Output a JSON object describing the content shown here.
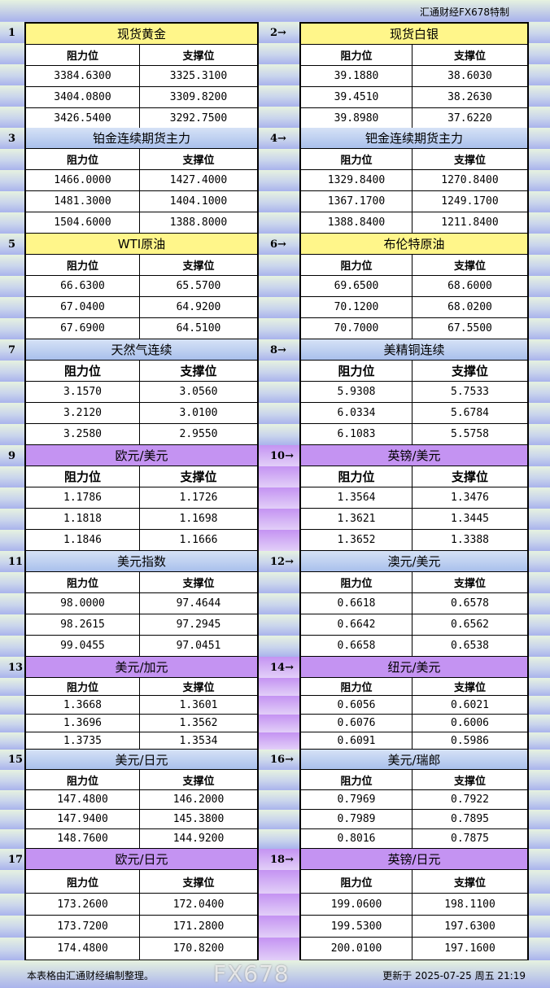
{
  "header": {
    "credit": "汇通财经FX678特制"
  },
  "colors": {
    "yellow": "#fff68a",
    "blue": "#b8cdf0",
    "purple": "#c493f2"
  },
  "column_headers": {
    "resistance": "阻力位",
    "support": "支撑位"
  },
  "sections": [
    {
      "num": "1",
      "title": "现货黄金",
      "style": "yellow",
      "res": [
        "3384.6300",
        "3404.0800",
        "3426.5400"
      ],
      "sup": [
        "3325.3100",
        "3309.8200",
        "3292.7500"
      ]
    },
    {
      "num": "2→",
      "title": "现货白银",
      "style": "yellow",
      "res": [
        "39.1880",
        "39.4510",
        "39.8980"
      ],
      "sup": [
        "38.6030",
        "38.2630",
        "37.6220"
      ]
    },
    {
      "num": "3",
      "title": "铂金连续期货主力",
      "style": "blue",
      "res": [
        "1466.0000",
        "1481.3000",
        "1504.6000"
      ],
      "sup": [
        "1427.4000",
        "1404.1000",
        "1388.8000"
      ]
    },
    {
      "num": "4→",
      "title": "钯金连续期货主力",
      "style": "blue",
      "res": [
        "1329.8400",
        "1367.1700",
        "1388.8400"
      ],
      "sup": [
        "1270.8400",
        "1249.1700",
        "1211.8400"
      ]
    },
    {
      "num": "5",
      "title": "WTI原油",
      "style": "yellow",
      "res": [
        "66.6300",
        "67.0400",
        "67.6900"
      ],
      "sup": [
        "65.5700",
        "64.9200",
        "64.5100"
      ]
    },
    {
      "num": "6→",
      "title": "布伦特原油",
      "style": "yellow",
      "res": [
        "69.6500",
        "70.1200",
        "70.7000"
      ],
      "sup": [
        "68.6000",
        "68.0200",
        "67.5500"
      ]
    },
    {
      "num": "7",
      "title": "天然气连续",
      "style": "blue",
      "res": [
        "3.1570",
        "3.2120",
        "3.2580"
      ],
      "sup": [
        "3.0560",
        "3.0100",
        "2.9550"
      ]
    },
    {
      "num": "8→",
      "title": "美精铜连续",
      "style": "blue",
      "res": [
        "5.9308",
        "6.0334",
        "6.1083"
      ],
      "sup": [
        "5.7533",
        "5.6784",
        "5.5758"
      ]
    },
    {
      "num": "9",
      "title": "欧元/美元",
      "style": "purple",
      "res": [
        "1.1786",
        "1.1818",
        "1.1846"
      ],
      "sup": [
        "1.1726",
        "1.1698",
        "1.1666"
      ]
    },
    {
      "num": "10→",
      "title": "英镑/美元",
      "style": "purple",
      "res": [
        "1.3564",
        "1.3621",
        "1.3652"
      ],
      "sup": [
        "1.3476",
        "1.3445",
        "1.3388"
      ]
    },
    {
      "num": "11",
      "title": "美元指数",
      "style": "blue",
      "res": [
        "98.0000",
        "98.2615",
        "99.0455"
      ],
      "sup": [
        "97.4644",
        "97.2945",
        "97.0451"
      ]
    },
    {
      "num": "12→",
      "title": "澳元/美元",
      "style": "blue",
      "res": [
        "0.6618",
        "0.6642",
        "0.6658"
      ],
      "sup": [
        "0.6578",
        "0.6562",
        "0.6538"
      ]
    },
    {
      "num": "13",
      "title": "美元/加元",
      "style": "purple",
      "res": [
        "1.3668",
        "1.3696",
        "1.3735"
      ],
      "sup": [
        "1.3601",
        "1.3562",
        "1.3534"
      ]
    },
    {
      "num": "14→",
      "title": "纽元/美元",
      "style": "purple",
      "res": [
        "0.6056",
        "0.6076",
        "0.6091"
      ],
      "sup": [
        "0.6021",
        "0.6006",
        "0.5986"
      ]
    },
    {
      "num": "15",
      "title": "美元/日元",
      "style": "blue",
      "res": [
        "147.4800",
        "147.9400",
        "148.7600"
      ],
      "sup": [
        "146.2000",
        "145.3800",
        "144.9200"
      ]
    },
    {
      "num": "16→",
      "title": "美元/瑞郎",
      "style": "blue",
      "res": [
        "0.7969",
        "0.7989",
        "0.8016"
      ],
      "sup": [
        "0.7922",
        "0.7895",
        "0.7875"
      ]
    },
    {
      "num": "17",
      "title": "欧元/日元",
      "style": "purple",
      "res": [
        "173.2600",
        "173.7200",
        "174.4800"
      ],
      "sup": [
        "172.0400",
        "171.2800",
        "170.8200"
      ]
    },
    {
      "num": "18→",
      "title": "英镑/日元",
      "style": "purple",
      "res": [
        "199.0600",
        "199.5300",
        "200.0100"
      ],
      "sup": [
        "198.1100",
        "197.6300",
        "197.1600"
      ]
    }
  ],
  "footer": {
    "note": "本表格由汇通财经编制整理。",
    "updated": "更新于 2025-07-25 周五 21:19",
    "watermark": "FX678"
  }
}
